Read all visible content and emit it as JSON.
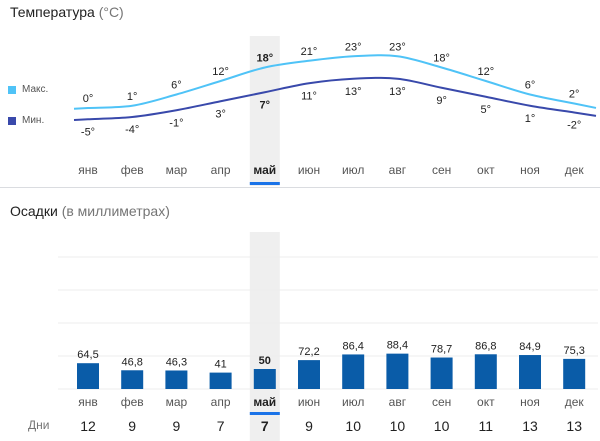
{
  "temperature": {
    "title": "Температура",
    "unit": "(°C)",
    "legend": [
      {
        "label": "Макс.",
        "color": "#4fc3f7"
      },
      {
        "label": "Мин.",
        "color": "#3949ab"
      }
    ]
  },
  "precip": {
    "title": "Осадки",
    "unit": "(в миллиметрах)",
    "days_label": "Дни"
  },
  "selected_month_index": 4,
  "colors": {
    "max_line": "#4fc3f7",
    "min_line": "#3949ab",
    "bar": "#0a5ca8",
    "highlight": "#efefef",
    "selected_underline": "#1a73e8"
  },
  "chart_data": [
    {
      "type": "line",
      "categories": [
        "янв",
        "фев",
        "мар",
        "апр",
        "май",
        "июн",
        "июл",
        "авг",
        "сен",
        "окт",
        "ноя",
        "дек"
      ],
      "series": [
        {
          "name": "Макс.",
          "values": [
            0,
            1,
            6,
            12,
            18,
            21,
            23,
            23,
            18,
            12,
            6,
            2
          ],
          "labels": [
            "0°",
            "1°",
            "6°",
            "12°",
            "18°",
            "21°",
            "23°",
            "23°",
            "18°",
            "12°",
            "6°",
            "2°"
          ]
        },
        {
          "name": "Мин.",
          "values": [
            -5,
            -4,
            -1,
            3,
            7,
            11,
            13,
            13,
            9,
            5,
            1,
            -2
          ],
          "labels": [
            "-5°",
            "-4°",
            "-1°",
            "3°",
            "7°",
            "11°",
            "13°",
            "13°",
            "9°",
            "5°",
            "1°",
            "-2°"
          ]
        }
      ]
    },
    {
      "type": "bar",
      "categories": [
        "янв",
        "фев",
        "мар",
        "апр",
        "май",
        "июн",
        "июл",
        "авг",
        "сен",
        "окт",
        "ноя",
        "дек"
      ],
      "values": [
        64.5,
        46.8,
        46.3,
        41,
        50,
        72.2,
        86.4,
        88.4,
        78.7,
        86.8,
        84.9,
        75.3
      ],
      "labels": [
        "64,5",
        "46,8",
        "46,3",
        "41",
        "50",
        "72,2",
        "86,4",
        "88,4",
        "78,7",
        "86,8",
        "84,9",
        "75,3"
      ],
      "days": [
        12,
        9,
        9,
        7,
        7,
        9,
        10,
        10,
        10,
        11,
        13,
        13
      ]
    }
  ]
}
